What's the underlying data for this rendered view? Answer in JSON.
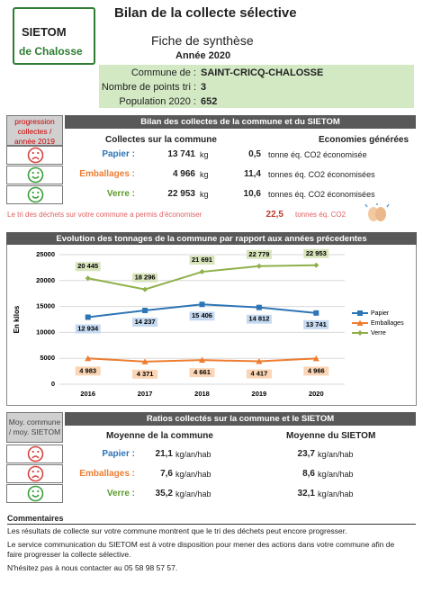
{
  "header": {
    "logo_top": "SIETOM",
    "logo_bottom": "de Chalosse",
    "title": "Bilan de la collecte sélective",
    "subtitle": "Fiche de synthèse",
    "year": "Année 2020"
  },
  "info": [
    {
      "label": "Commune de :",
      "value": "SAINT-CRICQ-CHALOSSE"
    },
    {
      "label": "Nombre de points tri :",
      "value": "3"
    },
    {
      "label": "Population 2020 :",
      "value": "652"
    }
  ],
  "collectes": {
    "side_label": "progression collectes / année 2019",
    "title": "Bilan des collectes de la commune et du SIETOM",
    "col1": "Collectes sur la commune",
    "col2": "Economies générées",
    "rows": [
      {
        "name": "Papier :",
        "amount": "13 741",
        "unit": "kg",
        "co2": "0,5",
        "co2_unit": "tonne éq. CO2 économisée"
      },
      {
        "name": "Emballages :",
        "amount": "4 966",
        "unit": "kg",
        "co2": "11,4",
        "co2_unit": "tonnes éq. CO2 économisées"
      },
      {
        "name": "Verre :",
        "amount": "22 953",
        "unit": "kg",
        "co2": "10,6",
        "co2_unit": "tonnes éq. CO2 économisées"
      }
    ],
    "summary": {
      "text": "Le tri des déchets sur votre commune a permis d'économiser",
      "value": "22,5",
      "unit": "tonnes éq. CO2"
    }
  },
  "chart_data": {
    "type": "line",
    "title": "Evolution des tonnages de la commune par rapport aux années précedentes",
    "y_label": "En kilos",
    "categories": [
      "2016",
      "2017",
      "2018",
      "2019",
      "2020"
    ],
    "series": [
      {
        "name": "Papier",
        "color": "#2e75b6",
        "marker": "square",
        "values": [
          12934,
          14237,
          15406,
          14812,
          13741
        ],
        "value_labels": [
          "12 934",
          "14 237",
          "15 406",
          "14 812",
          "13 741"
        ]
      },
      {
        "name": "Emballages",
        "color": "#ed7d31",
        "marker": "triangle",
        "values": [
          4983,
          4371,
          4661,
          4417,
          4966
        ],
        "value_labels": [
          "4 983",
          "4 371",
          "4 661",
          "4 417",
          "4 966"
        ]
      },
      {
        "name": "Verre",
        "color": "#8fb04a",
        "marker": "diamond",
        "values": [
          20445,
          18296,
          21691,
          22779,
          22953
        ],
        "value_labels": [
          "20 445",
          "18 296",
          "21 691",
          "22 779",
          "22 953"
        ]
      }
    ],
    "ylim": [
      0,
      25000
    ],
    "yticks": [
      0,
      5000,
      10000,
      15000,
      20000,
      25000
    ],
    "grid": true,
    "legend": "right"
  },
  "ratios": {
    "side_label": "Moy. commune / moy. SIETOM",
    "title": "Ratios collectés sur la commune et le SIETOM",
    "col1": "Moyenne de la commune",
    "col2": "Moyenne du SIETOM",
    "rows": [
      {
        "name": "Papier :",
        "commune": "21,1",
        "unit": "kg/an/hab",
        "sietom": "23,7",
        "unit2": "kg/an/hab"
      },
      {
        "name": "Emballages :",
        "commune": "7,6",
        "unit": "kg/an/hab",
        "sietom": "8,6",
        "unit2": "kg/an/hab"
      },
      {
        "name": "Verre :",
        "commune": "35,2",
        "unit": "kg/an/hab",
        "sietom": "32,1",
        "unit2": "kg/an/hab"
      }
    ]
  },
  "comments": {
    "title": "Commentaires",
    "paragraphs": [
      "Les résultats de collecte sur votre commune montrent que le tri des déchets peut encore progresser.",
      "Le service communication du SIETOM est à votre disposition pour mener des actions dans votre commune afin de faire progresser la collecte sélective.",
      "N'hésitez pas à nous contacter au 05 58 98 57 57."
    ]
  }
}
